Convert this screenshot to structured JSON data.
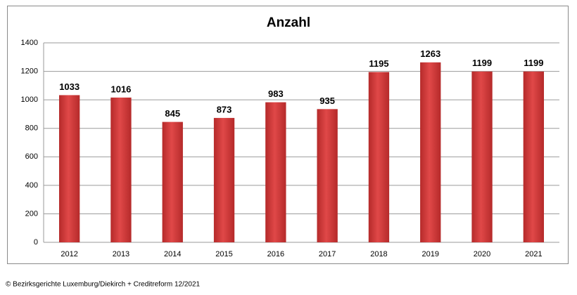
{
  "chart_data": {
    "type": "bar",
    "title": "Anzahl",
    "categories": [
      "2012",
      "2013",
      "2014",
      "2015",
      "2016",
      "2017",
      "2018",
      "2019",
      "2020",
      "2021"
    ],
    "values": [
      1033,
      1016,
      845,
      873,
      983,
      935,
      1195,
      1263,
      1199,
      1199
    ],
    "color": "#d63a3a",
    "ylim": [
      0,
      1400
    ],
    "yticks": [
      0,
      200,
      400,
      600,
      800,
      1000,
      1200,
      1400
    ],
    "grid": true,
    "data_labels": true,
    "source": "© Bezirksgerichte Luxemburg/Diekirch + Creditreform 12/2021"
  }
}
